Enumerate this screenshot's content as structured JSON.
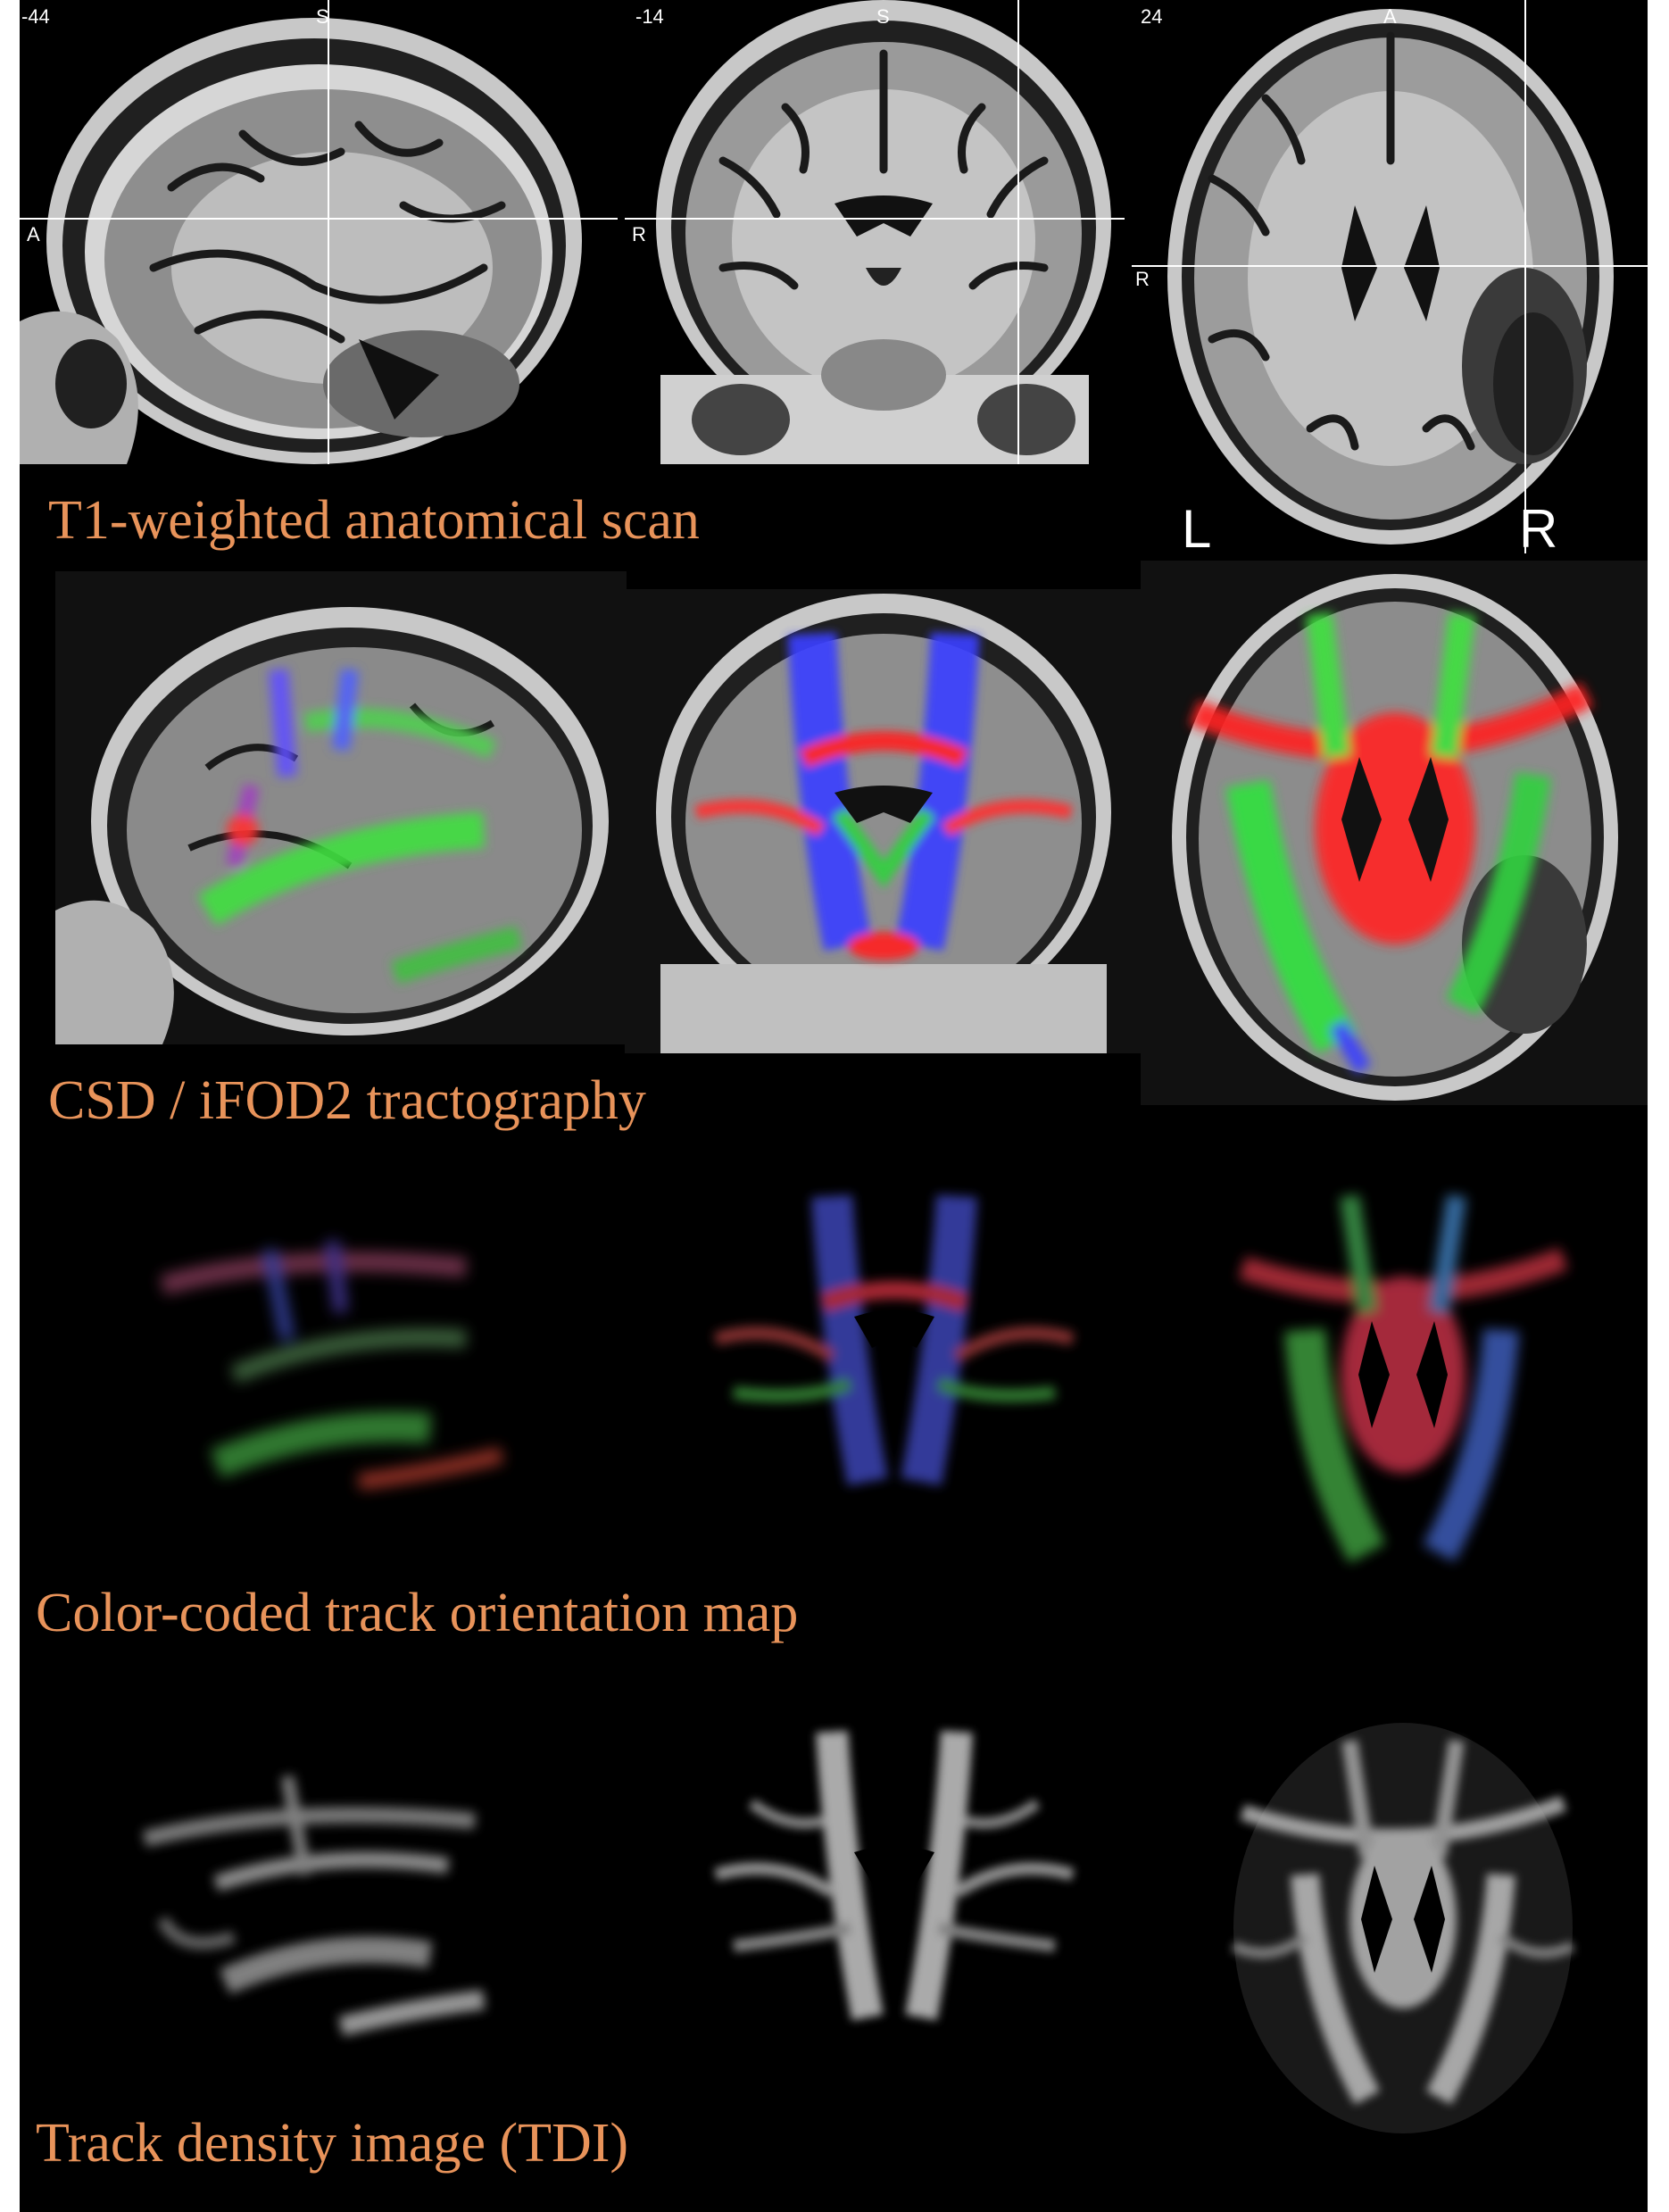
{
  "rows": [
    {
      "id": "t1",
      "label": "T1-weighted anatomical scan"
    },
    {
      "id": "tract",
      "label": "CSD / iFOD2 tractography"
    },
    {
      "id": "color",
      "label": "Color-coded track orientation map"
    },
    {
      "id": "tdi",
      "label": "Track density image (TDI)"
    }
  ],
  "t1_overlay": {
    "sagittal": {
      "slice": "-44",
      "top_label": "S",
      "left_label": "A"
    },
    "coronal": {
      "slice": "-14",
      "top_label": "S",
      "left_label": "R"
    },
    "axial": {
      "slice": "24",
      "top_label": "A",
      "left_label": "R"
    }
  },
  "hemisphere_labels": {
    "left": "L",
    "right": "R"
  },
  "colors": {
    "label": "#e8935a",
    "background": "#000000",
    "fiber_left_right": "#ff2020",
    "fiber_anterior_posterior": "#20ff40",
    "fiber_superior_inferior": "#3040ff"
  }
}
